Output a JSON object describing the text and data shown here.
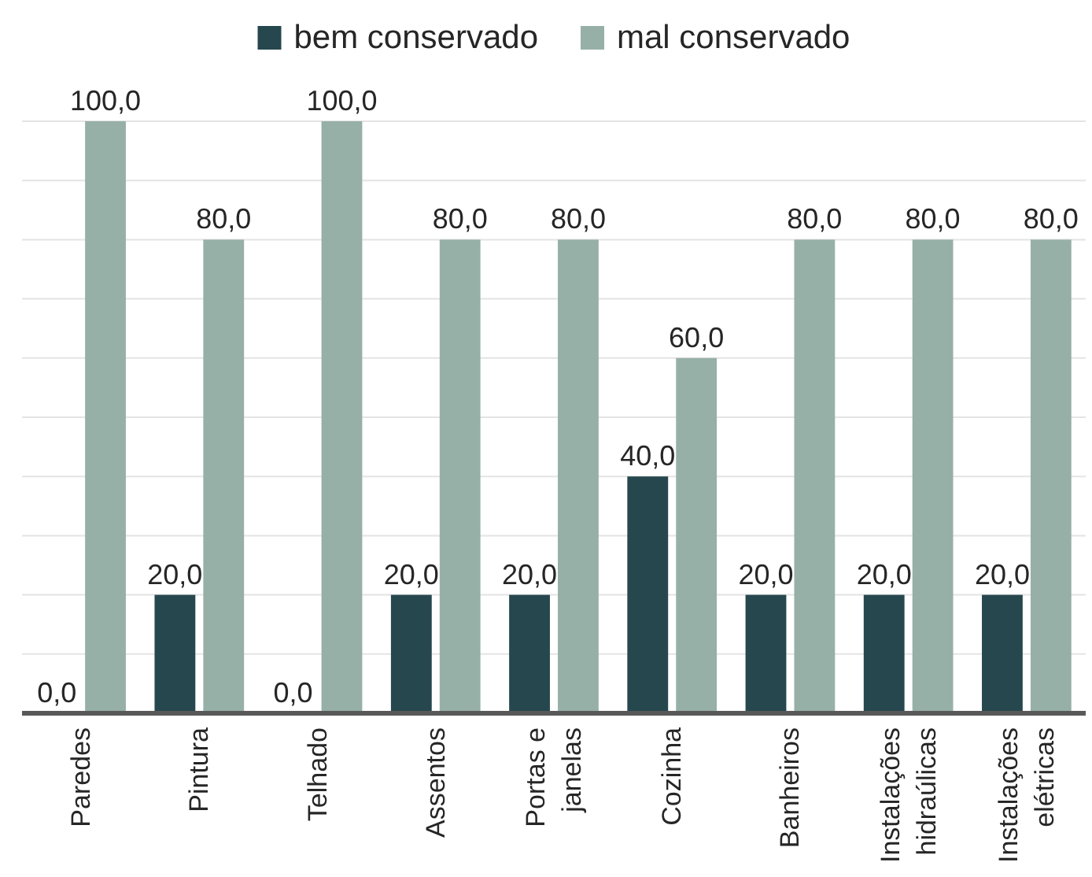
{
  "chart_data": {
    "type": "bar",
    "categories": [
      "Paredes",
      "Pintura",
      "Telhado",
      "Assentos",
      "Portas e janelas",
      "Cozinha",
      "Banheiros",
      "Instalações hidraúlicas",
      "Instalações elétricas"
    ],
    "series": [
      {
        "name": "bem conservado",
        "color": "#26474e",
        "values": [
          0,
          20,
          0,
          20,
          20,
          40,
          20,
          20,
          20
        ],
        "value_labels": [
          "0,0",
          "20,0",
          "0,0",
          "20,0",
          "20,0",
          "40,0",
          "20,0",
          "20,0",
          "20,0"
        ]
      },
      {
        "name": "mal conservado",
        "color": "#97b0a7",
        "values": [
          100,
          80,
          100,
          80,
          80,
          60,
          80,
          80,
          80
        ],
        "value_labels": [
          "100,0",
          "80,0",
          "100,0",
          "80,0",
          "80,0",
          "60,0",
          "80,0",
          "80,0",
          "80,0"
        ]
      }
    ],
    "ylim": [
      0,
      100
    ],
    "yticks": [
      {
        "value": 0,
        "label": null
      },
      {
        "value": 10,
        "label": null
      },
      {
        "value": 20,
        "label": null
      },
      {
        "value": 30,
        "label": null
      },
      {
        "value": 40,
        "label": null
      },
      {
        "value": 50,
        "label": null
      },
      {
        "value": 60,
        "label": null
      },
      {
        "value": 70,
        "label": null
      },
      {
        "value": 80,
        "label": null
      },
      {
        "value": 90,
        "label": null
      },
      {
        "value": 100,
        "label": null
      }
    ],
    "tick_labels": "x",
    "grid": "y",
    "legend": "top"
  }
}
